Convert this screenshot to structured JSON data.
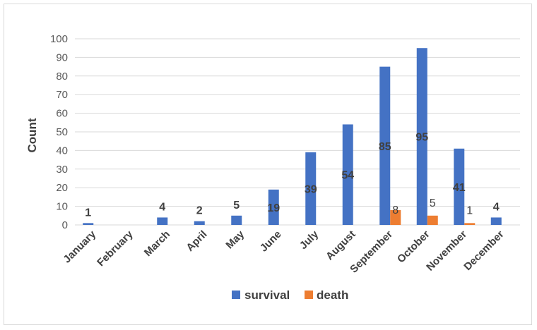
{
  "chart_data": {
    "type": "bar",
    "title": "",
    "xlabel": "",
    "ylabel": "Count",
    "ylim": [
      0,
      100
    ],
    "yticks": [
      0,
      10,
      20,
      30,
      40,
      50,
      60,
      70,
      80,
      90,
      100
    ],
    "grid": true,
    "legend_position": "bottom",
    "categories": [
      "January",
      "February",
      "March",
      "April",
      "May",
      "June",
      "July",
      "August",
      "September",
      "October",
      "November",
      "December"
    ],
    "series": [
      {
        "name": "survival",
        "color": "#4472c4",
        "values": [
          1,
          0,
          4,
          2,
          5,
          19,
          39,
          54,
          85,
          95,
          41,
          4
        ],
        "labels": [
          "1",
          "",
          "4",
          "2",
          "5",
          "19",
          "39",
          "54",
          "85",
          "95",
          "41",
          "4"
        ]
      },
      {
        "name": "death",
        "color": "#ed7d31",
        "values": [
          0,
          0,
          0,
          0,
          0,
          0,
          0,
          0,
          8,
          5,
          1,
          0
        ],
        "labels": [
          "",
          "",
          "",
          "",
          "",
          "",
          "",
          "",
          "8",
          "5",
          "1",
          ""
        ]
      }
    ]
  }
}
